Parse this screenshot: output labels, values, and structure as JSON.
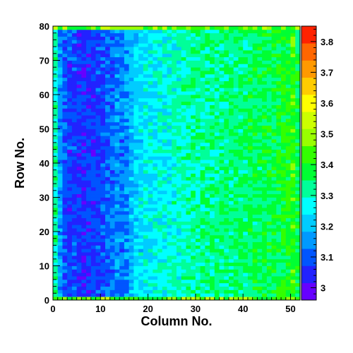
{
  "chart_data": {
    "type": "heatmap",
    "title": "",
    "xlabel": "Column No.",
    "ylabel": "Row No.",
    "x_range": [
      0,
      52
    ],
    "y_range": [
      0,
      80
    ],
    "x_bins": 52,
    "y_bins": 80,
    "x_ticks": [
      0,
      10,
      20,
      30,
      40,
      50
    ],
    "y_ticks": [
      0,
      10,
      20,
      30,
      40,
      50,
      60,
      70,
      80
    ],
    "z_range": [
      2.96,
      3.85
    ],
    "colorbar_ticks": [
      3.0,
      3.1,
      3.2,
      3.3,
      3.4,
      3.5,
      3.6,
      3.7,
      3.8
    ],
    "colorbar_tick_labels": [
      "3",
      "3.1",
      "3.2",
      "3.3",
      "3.4",
      "3.5",
      "3.6",
      "3.7",
      "3.8"
    ],
    "column_profile": [
      [
        0,
        3.31
      ],
      [
        1,
        3.16
      ],
      [
        2,
        3.09
      ],
      [
        3,
        3.07
      ],
      [
        4,
        3.08
      ],
      [
        5,
        3.06
      ],
      [
        6,
        3.05
      ],
      [
        7,
        3.06
      ],
      [
        8,
        3.07
      ],
      [
        9,
        3.08
      ],
      [
        10,
        3.09
      ],
      [
        11,
        3.11
      ],
      [
        12,
        3.12
      ],
      [
        13,
        3.14
      ],
      [
        14,
        3.13
      ],
      [
        15,
        3.16
      ],
      [
        16,
        3.19
      ],
      [
        17,
        3.22
      ],
      [
        18,
        3.24
      ],
      [
        19,
        3.25
      ],
      [
        20,
        3.25
      ],
      [
        21,
        3.26
      ],
      [
        22,
        3.27
      ],
      [
        23,
        3.27
      ],
      [
        24,
        3.28
      ],
      [
        25,
        3.29
      ],
      [
        26,
        3.29
      ],
      [
        27,
        3.3
      ],
      [
        28,
        3.3
      ],
      [
        29,
        3.31
      ],
      [
        30,
        3.31
      ],
      [
        31,
        3.32
      ],
      [
        32,
        3.32
      ],
      [
        33,
        3.32
      ],
      [
        34,
        3.33
      ],
      [
        35,
        3.33
      ],
      [
        36,
        3.33
      ],
      [
        37,
        3.34
      ],
      [
        38,
        3.34
      ],
      [
        39,
        3.34
      ],
      [
        40,
        3.34
      ],
      [
        41,
        3.35
      ],
      [
        42,
        3.35
      ],
      [
        43,
        3.35
      ],
      [
        44,
        3.36
      ],
      [
        45,
        3.36
      ],
      [
        46,
        3.37
      ],
      [
        47,
        3.38
      ],
      [
        48,
        3.39
      ],
      [
        49,
        3.4
      ],
      [
        50,
        3.42
      ],
      [
        51,
        3.36
      ]
    ],
    "edge_rows_value": 3.45,
    "colormap": [
      "#6600ff",
      "#2222ff",
      "#0055ff",
      "#0099ff",
      "#00ccff",
      "#00ffff",
      "#00ff99",
      "#00ff33",
      "#33ff00",
      "#99ff00",
      "#ccff00",
      "#ffff00",
      "#ffcc00",
      "#ff9900",
      "#ff6600",
      "#ff2200"
    ]
  }
}
